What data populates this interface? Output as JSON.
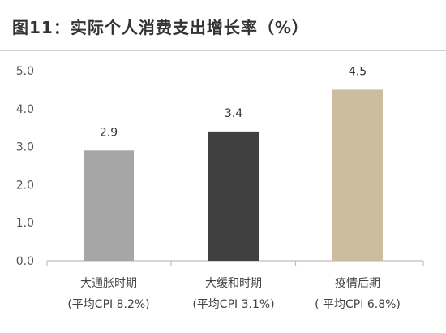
{
  "chart_data": {
    "type": "bar",
    "title": "图11：实际个人消费支出增长率（%）",
    "categories": [
      "大通胀时期",
      "大缓和时期",
      "疫情后期"
    ],
    "subcategories": [
      "(平均CPI 8.2%)",
      "(平均CPI 3.1%)",
      "( 平均CPI 6.8%)"
    ],
    "values": [
      2.9,
      3.4,
      4.5
    ],
    "data_labels": [
      "2.9",
      "3.4",
      "4.5"
    ],
    "ylim": [
      0,
      5
    ],
    "yticks": [
      "0.0",
      "1.0",
      "2.0",
      "3.0",
      "4.0",
      "5.0"
    ],
    "colors": [
      "#a6a6a6",
      "#404040",
      "#cbbd9e"
    ],
    "axis_color": "#bfbfbf",
    "grid": false,
    "xlabel": "",
    "ylabel": ""
  }
}
